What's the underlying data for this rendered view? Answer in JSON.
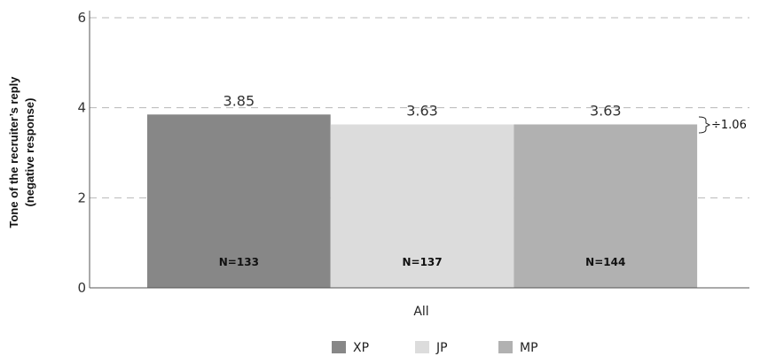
{
  "chart_data": {
    "type": "bar",
    "ylabel_lines": [
      "Tone of the recruiter’s reply",
      "(negative response)"
    ],
    "xlabel": "All",
    "ylim": [
      0,
      6
    ],
    "yticks": [
      "0",
      "2",
      "4",
      "6"
    ],
    "grid": "dashed horizontal",
    "series": [
      {
        "name": "XP",
        "value": 3.85,
        "label": "3.85",
        "n_label": "N=133",
        "color": "#878787"
      },
      {
        "name": "JP",
        "value": 3.63,
        "label": "3.63",
        "n_label": "N=137",
        "color": "#dcdcdc"
      },
      {
        "name": "MP",
        "value": 3.63,
        "label": "3.63",
        "n_label": "N=144",
        "color": "#b1b1b1"
      }
    ],
    "annotation": "÷1.06",
    "legend_position": "bottom"
  }
}
